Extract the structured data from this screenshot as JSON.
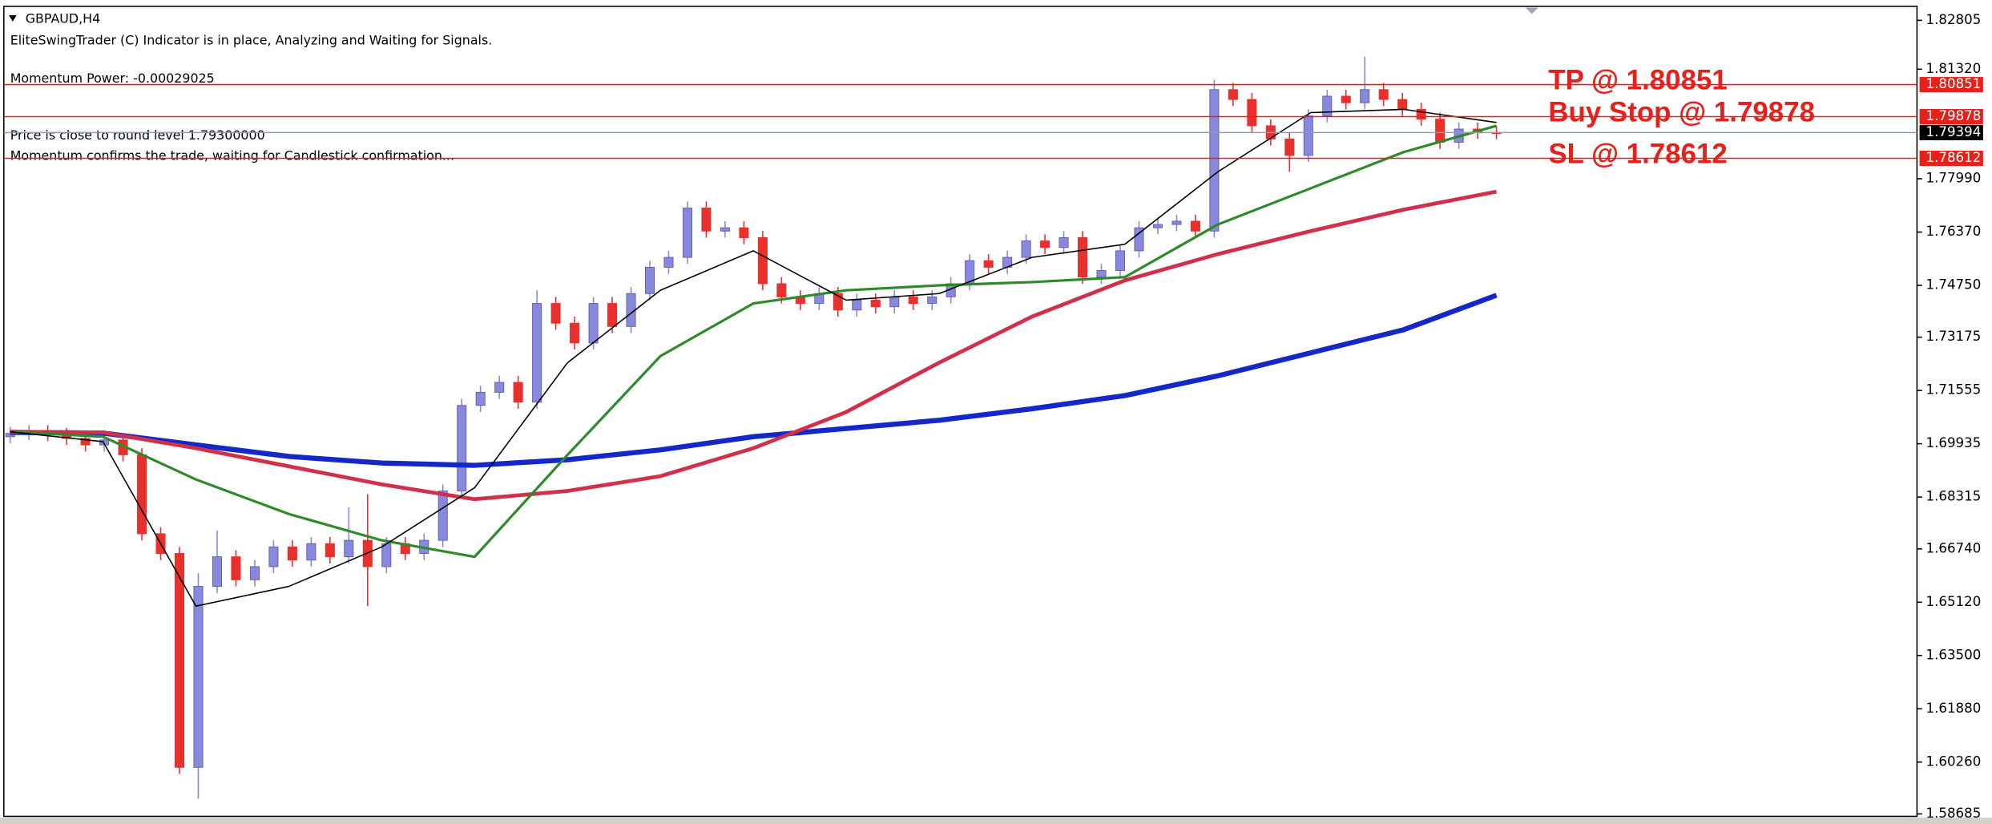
{
  "chart_data": {
    "type": "candlestick",
    "title": "GBPAUD,H4",
    "texts": [
      "EliteSwingTrader (C) Indicator is in place, Analyzing and Waiting for Signals.",
      "Momentum Power: -0.00029025",
      "Price is close to round level 1.79300000",
      "Momentum confirms the trade, waiting for Candlestick confirmation..."
    ],
    "up_color": "#8888dc",
    "down_color": "#e8302c",
    "open": [
      1.7015,
      1.7025,
      1.703,
      1.7022,
      1.701,
      1.699,
      1.7005,
      1.696,
      1.672,
      1.666,
      1.601,
      1.656,
      1.665,
      1.658,
      1.662,
      1.668,
      1.664,
      1.669,
      1.665,
      1.67,
      1.662,
      1.669,
      1.666,
      1.67,
      1.685,
      1.711,
      1.715,
      1.718,
      1.712,
      1.742,
      1.736,
      1.73,
      1.742,
      1.735,
      1.745,
      1.753,
      1.756,
      1.771,
      1.764,
      1.765,
      1.762,
      1.748,
      1.744,
      1.742,
      1.745,
      1.74,
      1.743,
      1.741,
      1.744,
      1.742,
      1.744,
      1.748,
      1.755,
      1.753,
      1.756,
      1.761,
      1.759,
      1.762,
      1.75,
      1.752,
      1.758,
      1.765,
      1.766,
      1.767,
      1.764,
      1.807,
      1.804,
      1.796,
      1.792,
      1.787,
      1.799,
      1.805,
      1.803,
      1.807,
      1.804,
      1.801,
      1.798,
      1.791,
      1.795,
      1.794
    ],
    "high": [
      1.7045,
      1.705,
      1.705,
      1.7042,
      1.703,
      1.7025,
      1.7025,
      1.698,
      1.674,
      1.668,
      1.66,
      1.673,
      1.667,
      1.664,
      1.67,
      1.67,
      1.671,
      1.671,
      1.68,
      1.684,
      1.671,
      1.671,
      1.672,
      1.687,
      1.713,
      1.717,
      1.72,
      1.72,
      1.746,
      1.744,
      1.738,
      1.744,
      1.744,
      1.747,
      1.755,
      1.758,
      1.773,
      1.773,
      1.767,
      1.767,
      1.764,
      1.75,
      1.746,
      1.747,
      1.747,
      1.745,
      1.745,
      1.746,
      1.746,
      1.746,
      1.75,
      1.757,
      1.757,
      1.758,
      1.763,
      1.763,
      1.764,
      1.764,
      1.754,
      1.76,
      1.767,
      1.768,
      1.769,
      1.769,
      1.81,
      1.809,
      1.806,
      1.798,
      1.794,
      1.801,
      1.807,
      1.807,
      1.817,
      1.809,
      1.806,
      1.803,
      1.8,
      1.797,
      1.797,
      1.796
    ],
    "low": [
      1.6995,
      1.7005,
      1.7002,
      1.699,
      1.697,
      1.697,
      1.694,
      1.67,
      1.664,
      1.599,
      1.5915,
      1.654,
      1.656,
      1.656,
      1.66,
      1.662,
      1.662,
      1.663,
      1.663,
      1.65,
      1.66,
      1.664,
      1.664,
      1.668,
      1.683,
      1.709,
      1.713,
      1.71,
      1.71,
      1.734,
      1.728,
      1.728,
      1.733,
      1.733,
      1.743,
      1.751,
      1.754,
      1.762,
      1.762,
      1.76,
      1.746,
      1.742,
      1.74,
      1.74,
      1.738,
      1.738,
      1.739,
      1.739,
      1.74,
      1.74,
      1.742,
      1.746,
      1.751,
      1.751,
      1.754,
      1.757,
      1.757,
      1.748,
      1.748,
      1.75,
      1.756,
      1.763,
      1.764,
      1.762,
      1.762,
      1.802,
      1.794,
      1.79,
      1.782,
      1.785,
      1.797,
      1.801,
      1.801,
      1.802,
      1.799,
      1.796,
      1.789,
      1.789,
      1.792,
      1.7919
    ],
    "close": [
      1.7025,
      1.703,
      1.7022,
      1.701,
      1.699,
      1.7005,
      1.696,
      1.672,
      1.666,
      1.601,
      1.656,
      1.665,
      1.658,
      1.662,
      1.668,
      1.664,
      1.669,
      1.665,
      1.67,
      1.662,
      1.669,
      1.666,
      1.67,
      1.685,
      1.711,
      1.715,
      1.718,
      1.712,
      1.742,
      1.736,
      1.73,
      1.742,
      1.735,
      1.745,
      1.753,
      1.756,
      1.771,
      1.764,
      1.765,
      1.762,
      1.748,
      1.744,
      1.742,
      1.745,
      1.74,
      1.743,
      1.741,
      1.744,
      1.742,
      1.744,
      1.748,
      1.755,
      1.753,
      1.756,
      1.761,
      1.759,
      1.762,
      1.75,
      1.752,
      1.758,
      1.765,
      1.766,
      1.767,
      1.764,
      1.807,
      1.804,
      1.796,
      1.792,
      1.787,
      1.799,
      1.805,
      1.803,
      1.807,
      1.804,
      1.801,
      1.798,
      1.791,
      1.795,
      1.794,
      1.7939
    ],
    "series": [
      {
        "type": "line",
        "color": "#1428c8",
        "width": 4,
        "values": [
          1.7028,
          1.7026,
          1.699,
          1.6955,
          1.6935,
          1.6928,
          1.6945,
          1.6975,
          1.7015,
          1.704,
          1.7065,
          1.71,
          1.714,
          1.72,
          1.727,
          1.734,
          1.7445
        ]
      },
      {
        "type": "line",
        "color": "#d0304a",
        "width": 3,
        "values": [
          1.703,
          1.7028,
          1.698,
          1.6925,
          1.687,
          1.6825,
          1.685,
          1.6895,
          1.698,
          1.709,
          1.724,
          1.738,
          1.749,
          1.757,
          1.764,
          1.7705,
          1.776
        ]
      },
      {
        "type": "line",
        "color": "#2e8a2a",
        "width": 2,
        "values": [
          1.703,
          1.7015,
          1.6885,
          1.678,
          1.67,
          1.665,
          1.696,
          1.726,
          1.742,
          1.746,
          1.7475,
          1.7485,
          1.75,
          1.766,
          1.777,
          1.788,
          1.796
        ]
      },
      {
        "type": "line",
        "color": "#000000",
        "width": 1,
        "values": [
          1.703,
          1.7,
          1.65,
          1.656,
          1.668,
          1.686,
          1.724,
          1.746,
          1.758,
          1.743,
          1.745,
          1.756,
          1.76,
          1.782,
          1.8,
          1.801,
          1.797
        ]
      }
    ],
    "ylim": [
      1.5861,
      1.8323
    ],
    "yticks": [
      1.82805,
      {
        "value": 1.8132,
        "label": "1.81320"
      },
      {
        "value": 1.7799,
        "label": "1.77990"
      },
      {
        "value": 1.7637,
        "label": "1.76370"
      },
      {
        "value": 1.7475,
        "label": "1.74750"
      },
      1.73175,
      1.71555,
      1.69935,
      1.68315,
      {
        "value": 1.6674,
        "label": "1.66740"
      },
      {
        "value": 1.6512,
        "label": "1.65120"
      },
      {
        "value": 1.635,
        "label": "1.63500"
      },
      {
        "value": 1.6188,
        "label": "1.61880"
      },
      {
        "value": 1.6026,
        "label": "1.60260"
      },
      1.58685
    ],
    "levels": [
      {
        "value": 1.80851,
        "color": "#e8201c",
        "box_color": "#e8201c",
        "annotation": "TP @ 1.80851"
      },
      {
        "value": 1.79878,
        "color": "#e8201c",
        "box_color": "#e8201c",
        "annotation": "Buy Stop @ 1.79878"
      },
      {
        "value": 1.79394,
        "color": "#8c9cb8",
        "box_color": "#000000"
      },
      {
        "value": 1.78612,
        "color": "#e8201c",
        "box_color": "#e8201c",
        "annotation": "SL @ 1.78612"
      }
    ]
  }
}
